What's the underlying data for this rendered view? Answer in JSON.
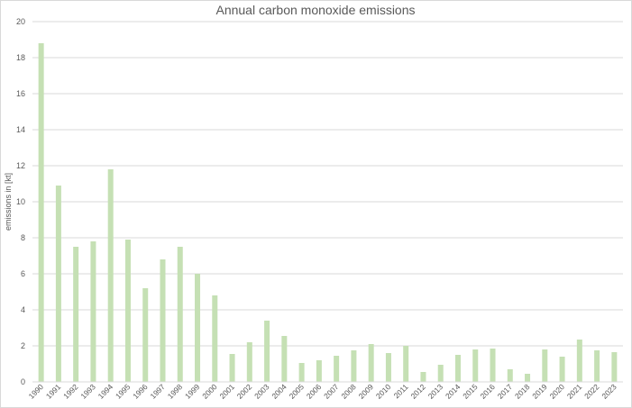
{
  "chart_data": {
    "type": "bar",
    "title": "Annual carbon monoxide emissions",
    "xlabel": "",
    "ylabel": "emissions in [kt]",
    "ylim": [
      0,
      20
    ],
    "yticks": [
      0,
      2,
      4,
      6,
      8,
      10,
      12,
      14,
      16,
      18,
      20
    ],
    "grid": true,
    "legend": "none",
    "bar_color": "#c5e0b4",
    "categories": [
      "1990",
      "1991",
      "1992",
      "1993",
      "1994",
      "1995",
      "1996",
      "1997",
      "1998",
      "1999",
      "2000",
      "2001",
      "2002",
      "2003",
      "2004",
      "2005",
      "2006",
      "2007",
      "2008",
      "2009",
      "2010",
      "2011",
      "2012",
      "2013",
      "2014",
      "2015",
      "2016",
      "2017",
      "2018",
      "2019",
      "2020",
      "2021",
      "2022",
      "2023"
    ],
    "values": [
      18.8,
      10.9,
      7.5,
      7.8,
      11.8,
      7.9,
      5.2,
      6.8,
      7.5,
      6.0,
      4.8,
      1.55,
      2.2,
      3.4,
      2.55,
      1.05,
      1.2,
      1.45,
      1.75,
      2.1,
      1.6,
      2.0,
      0.55,
      0.95,
      1.5,
      1.8,
      1.85,
      0.7,
      0.45,
      1.8,
      1.4,
      2.35,
      1.75,
      1.65
    ]
  }
}
